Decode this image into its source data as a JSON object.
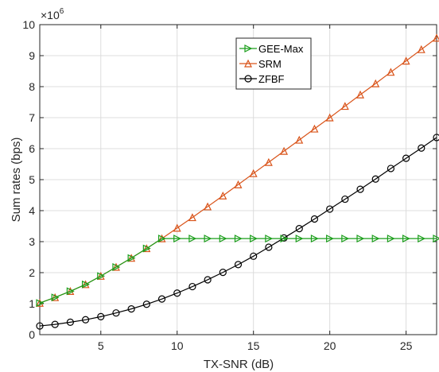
{
  "chart_data": {
    "type": "line",
    "xlabel": "TX-SNR (dB)",
    "ylabel": "Sum rates  (bps)",
    "exponent_label": "×10",
    "exponent_power": "6",
    "xlim": [
      1,
      27
    ],
    "ylim": [
      0,
      10
    ],
    "xticks": [
      5,
      10,
      15,
      20,
      25
    ],
    "yticks": [
      0,
      1,
      2,
      3,
      4,
      5,
      6,
      7,
      8,
      9,
      10
    ],
    "grid": true,
    "legend_position": "top-right",
    "x": [
      1,
      2,
      3,
      4,
      5,
      6,
      7,
      8,
      9,
      10,
      11,
      12,
      13,
      14,
      15,
      16,
      17,
      18,
      19,
      20,
      21,
      22,
      23,
      24,
      25,
      26,
      27
    ],
    "series": [
      {
        "name": "GEE-Max",
        "color": "#1a9e1a",
        "marker": "triangle-right",
        "values": [
          1.02,
          1.2,
          1.4,
          1.62,
          1.89,
          2.18,
          2.47,
          2.78,
          3.1,
          3.1,
          3.1,
          3.1,
          3.1,
          3.1,
          3.1,
          3.1,
          3.1,
          3.1,
          3.1,
          3.1,
          3.1,
          3.1,
          3.1,
          3.1,
          3.1,
          3.1,
          3.1
        ]
      },
      {
        "name": "SRM",
        "color": "#d95319",
        "marker": "triangle-up",
        "values": [
          1.02,
          1.2,
          1.4,
          1.62,
          1.89,
          2.18,
          2.47,
          2.78,
          3.1,
          3.44,
          3.78,
          4.13,
          4.48,
          4.84,
          5.2,
          5.56,
          5.92,
          6.28,
          6.64,
          7.0,
          7.37,
          7.74,
          8.1,
          8.47,
          8.83,
          9.2,
          9.57
        ]
      },
      {
        "name": "ZFBF",
        "color": "#000000",
        "marker": "circle",
        "values": [
          0.28,
          0.33,
          0.4,
          0.48,
          0.58,
          0.7,
          0.83,
          0.98,
          1.15,
          1.34,
          1.55,
          1.77,
          2.01,
          2.26,
          2.53,
          2.82,
          3.12,
          3.42,
          3.73,
          4.05,
          4.37,
          4.69,
          5.02,
          5.36,
          5.69,
          6.02,
          6.36
        ]
      }
    ]
  }
}
